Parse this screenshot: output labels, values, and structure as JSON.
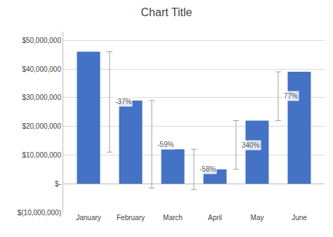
{
  "chart_data": {
    "type": "bar",
    "title": "Chart Title",
    "categories": [
      "January",
      "February",
      "March",
      "April",
      "May",
      "June"
    ],
    "values": [
      46000000,
      29000000,
      12000000,
      5000000,
      22000000,
      39000000
    ],
    "color": "#4472C4",
    "ylim": [
      -10000000,
      53000000
    ],
    "yticks": [
      {
        "value": -10000000,
        "label": "$(10,000,000)"
      },
      {
        "value": 0,
        "label": "$-"
      },
      {
        "value": 10000000,
        "label": "$10,000,000"
      },
      {
        "value": 20000000,
        "label": "$20,000,000"
      },
      {
        "value": 30000000,
        "label": "$30,000,000"
      },
      {
        "value": 40000000,
        "label": "$40,000,000"
      },
      {
        "value": 50000000,
        "label": "$50,000,000"
      }
    ],
    "grid": true,
    "brackets": [
      {
        "from": "January",
        "to": "February",
        "top": 46000000,
        "bottom": 11000000,
        "label": "-37%"
      },
      {
        "from": "February",
        "to": "March",
        "top": 29000000,
        "bottom": -1500000,
        "label": "-59%"
      },
      {
        "from": "March",
        "to": "April",
        "top": 12000000,
        "bottom": -2000000,
        "label": "-58%"
      },
      {
        "from": "April",
        "to": "May",
        "top": 22000000,
        "bottom": 5000000,
        "label": "340%"
      },
      {
        "from": "May",
        "to": "June",
        "top": 39000000,
        "bottom": 22000000,
        "label": "77%"
      }
    ]
  }
}
